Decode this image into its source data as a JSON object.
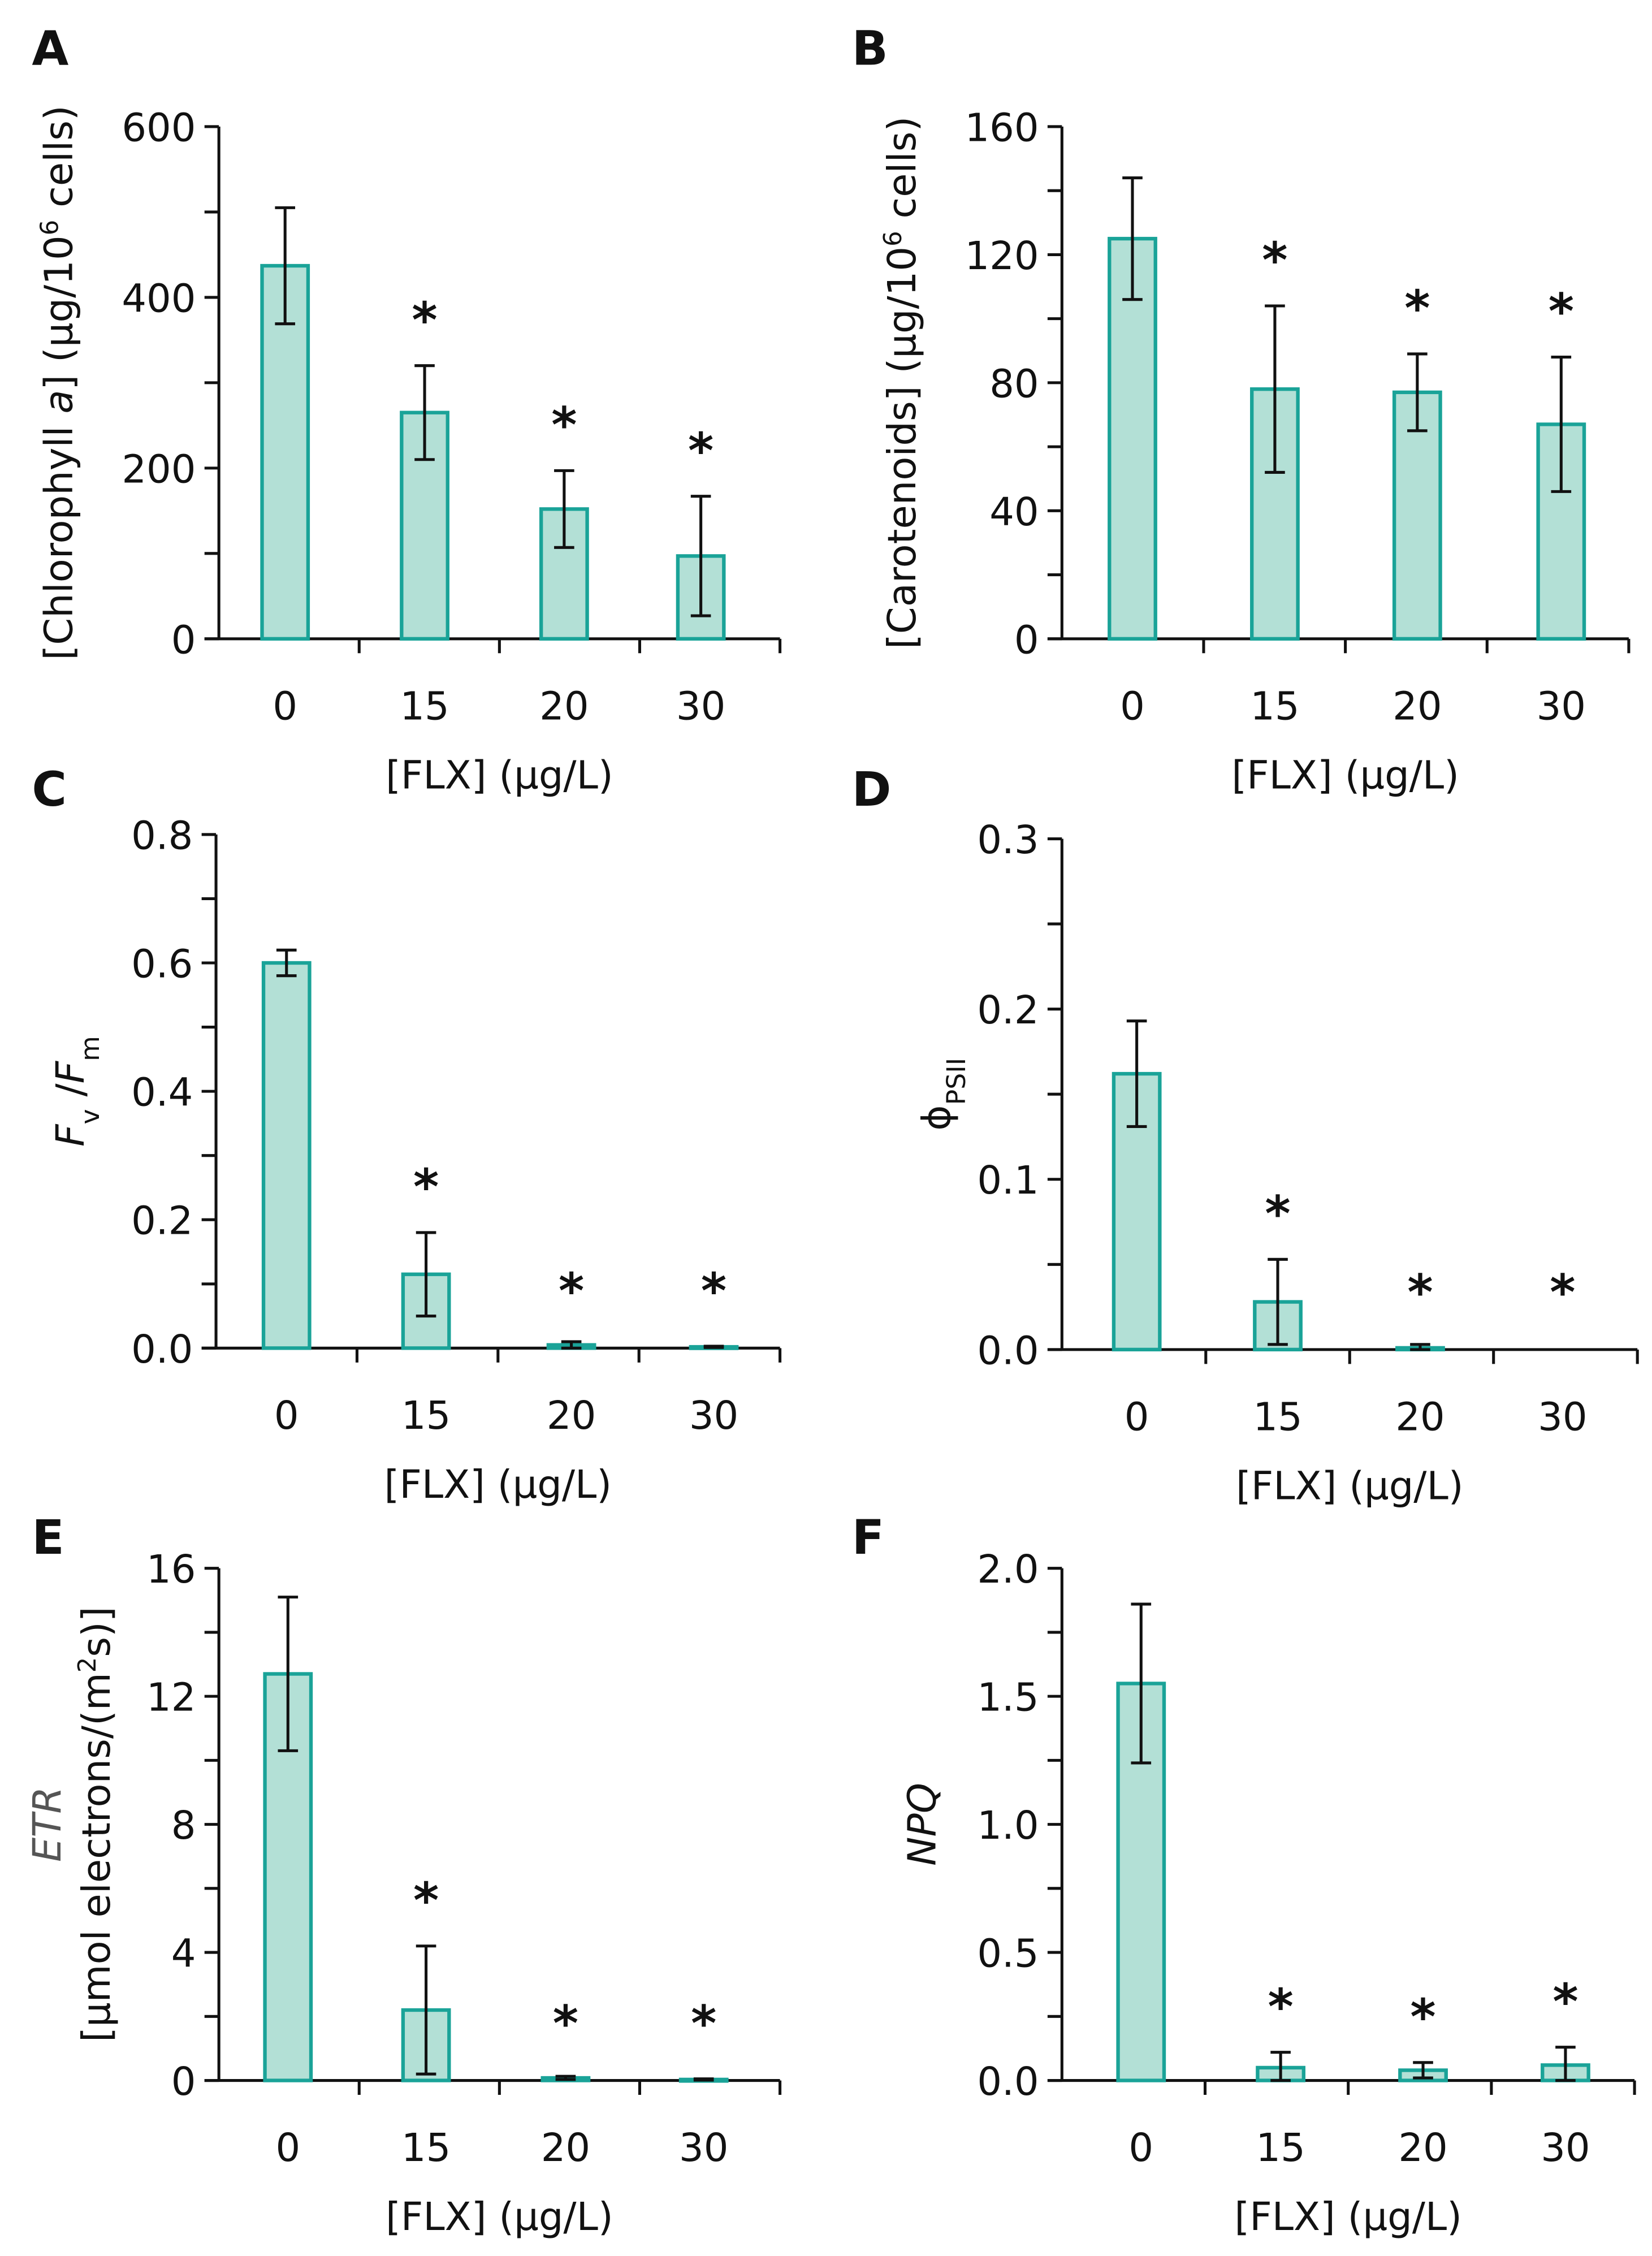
{
  "colors": {
    "bar_fill": "#b3e0d6",
    "bar_stroke": "#1aa398",
    "axis": "#111111"
  },
  "chart_data": [
    {
      "panel": "A",
      "type": "bar",
      "categories": [
        "0",
        "15",
        "20",
        "30"
      ],
      "values": [
        437,
        265,
        152,
        97
      ],
      "errors": [
        68,
        55,
        45,
        70
      ],
      "significant": [
        false,
        true,
        true,
        true
      ],
      "ylim": [
        0,
        600
      ],
      "yticks": [
        0,
        200,
        400,
        600
      ],
      "yminor": 100,
      "xlabel": "[FLX] (µg/L)",
      "ylabel": [
        {
          "t": "[Chlorophyll "
        },
        {
          "t": "a",
          "i": true
        },
        {
          "t": "] (µg/10"
        },
        {
          "t": "6",
          "sup": true
        },
        {
          "t": " cells)"
        }
      ]
    },
    {
      "panel": "B",
      "type": "bar",
      "categories": [
        "0",
        "15",
        "20",
        "30"
      ],
      "values": [
        125,
        78,
        77,
        67
      ],
      "errors": [
        19,
        26,
        12,
        21
      ],
      "significant": [
        false,
        true,
        true,
        true
      ],
      "ylim": [
        0,
        160
      ],
      "yticks": [
        0,
        40,
        80,
        120,
        160
      ],
      "yminor": 20,
      "xlabel": "[FLX] (µg/L)",
      "ylabel": [
        {
          "t": "[Carotenoids] (µg/10"
        },
        {
          "t": "6",
          "sup": true
        },
        {
          "t": " cells)"
        }
      ]
    },
    {
      "panel": "C",
      "type": "bar",
      "categories": [
        "0",
        "15",
        "20",
        "30"
      ],
      "values": [
        0.6,
        0.115,
        0.005,
        0.002
      ],
      "errors": [
        0.02,
        0.065,
        0.005,
        0.001
      ],
      "significant": [
        false,
        true,
        true,
        true
      ],
      "ylim": [
        0,
        0.8
      ],
      "yticks": [
        "0.0",
        "0.2",
        "0.4",
        "0.6",
        "0.8"
      ],
      "yminor": 0.1,
      "xlabel": "[FLX] (µg/L)",
      "ylabel": [
        {
          "t": "F",
          "i": true
        },
        {
          "t": "v",
          "sub": true
        },
        {
          "t": " /"
        },
        {
          "t": "F",
          "i": true
        },
        {
          "t": "m",
          "sub": true
        }
      ]
    },
    {
      "panel": "D",
      "type": "bar",
      "categories": [
        "0",
        "15",
        "20",
        "30"
      ],
      "values": [
        0.162,
        0.028,
        0.001,
        0
      ],
      "errors": [
        0.031,
        0.025,
        0.002,
        0
      ],
      "significant": [
        false,
        true,
        true,
        true
      ],
      "ylim": [
        0,
        0.3
      ],
      "yticks": [
        "0.0",
        "0.1",
        "0.2",
        "0.3"
      ],
      "yminor": 0.05,
      "xlabel": "[FLX] (µg/L)",
      "ylabel": [
        {
          "t": "ϕ"
        },
        {
          "t": "PSII",
          "sub": true
        }
      ]
    },
    {
      "panel": "E",
      "type": "bar",
      "categories": [
        "0",
        "15",
        "20",
        "30"
      ],
      "values": [
        12.7,
        2.2,
        0.08,
        0.03
      ],
      "errors": [
        2.4,
        2.0,
        0.05,
        0.02
      ],
      "significant": [
        false,
        true,
        true,
        true
      ],
      "ylim": [
        0,
        16
      ],
      "yticks": [
        0,
        4,
        8,
        12,
        16
      ],
      "yminor": 2,
      "xlabel": "[FLX] (µg/L)",
      "ylabel": [
        {
          "t": "ETR",
          "i": true,
          "grey": true
        }
      ],
      "ylabel2": [
        {
          "t": "[µmol electrons/(m"
        },
        {
          "t": "2",
          "sup": true
        },
        {
          "t": "s)]"
        }
      ]
    },
    {
      "panel": "F",
      "type": "bar",
      "categories": [
        "0",
        "15",
        "20",
        "30"
      ],
      "values": [
        1.55,
        0.05,
        0.04,
        0.06
      ],
      "errors": [
        0.31,
        0.06,
        0.03,
        0.07
      ],
      "significant": [
        false,
        true,
        true,
        true
      ],
      "ylim": [
        0,
        2.0
      ],
      "yticks": [
        "0.0",
        "0.5",
        "1.0",
        "1.5",
        "2.0"
      ],
      "yminor": 0.25,
      "xlabel": "[FLX] (µg/L)",
      "ylabel": [
        {
          "t": "NPQ",
          "i": true
        }
      ]
    }
  ],
  "significance_mark": "*"
}
